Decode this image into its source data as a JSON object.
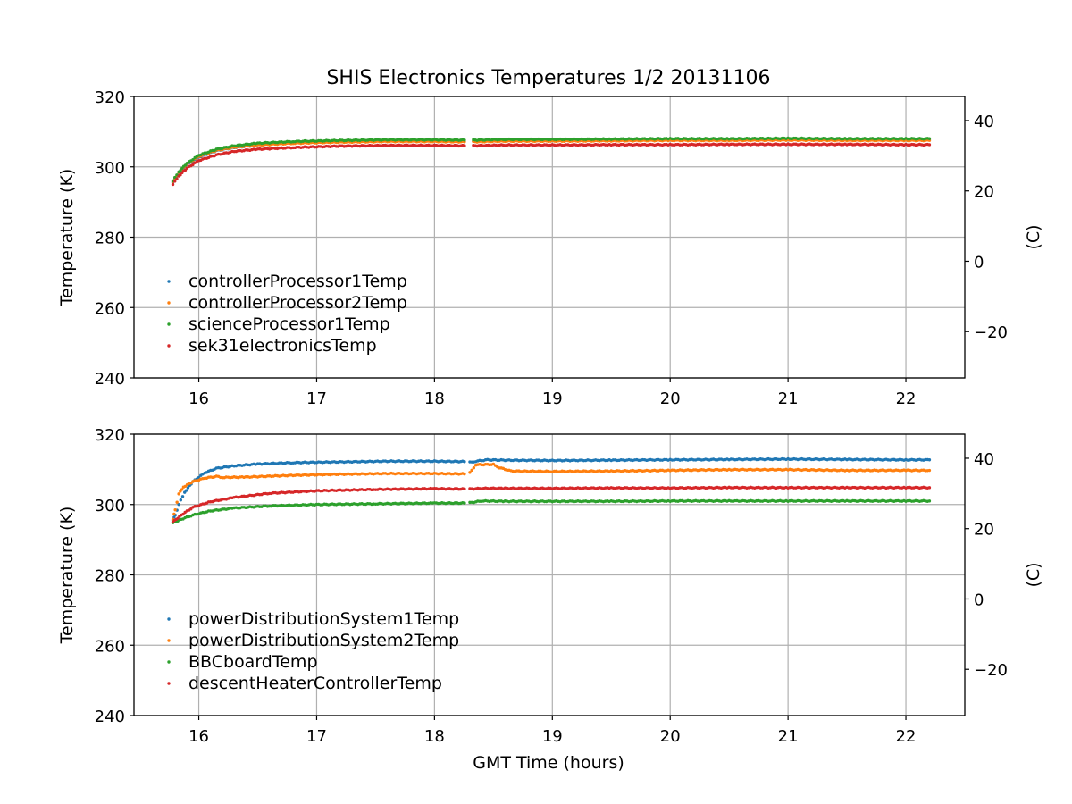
{
  "figure": {
    "title": "SHIS Electronics Temperatures 1/2 20131106",
    "xlabel": "GMT Time (hours)"
  },
  "chart_data": [
    {
      "type": "scatter",
      "ylabel": "Temperature (K)",
      "ylabel_right": "(C)",
      "xlabel": "",
      "xlim": [
        15.45,
        22.5
      ],
      "ylim": [
        240,
        320
      ],
      "ylim_right": [
        -33.15,
        46.85
      ],
      "xticks": [
        16,
        17,
        18,
        19,
        20,
        21,
        22
      ],
      "yticks": [
        240,
        260,
        280,
        300,
        320
      ],
      "yticks_right": [
        -20,
        0,
        20,
        40
      ],
      "grid": true,
      "legend_location": "lower-left",
      "gap": [
        18.27,
        18.33
      ],
      "series": [
        {
          "name": "controllerProcessor1Temp",
          "color": "#1f77b4",
          "points": [
            [
              15.78,
              295.6
            ],
            [
              15.83,
              298.2
            ],
            [
              15.9,
              300.6
            ],
            [
              16.0,
              302.8
            ],
            [
              16.15,
              304.6
            ],
            [
              16.3,
              305.5
            ],
            [
              16.5,
              306.2
            ],
            [
              16.8,
              306.8
            ],
            [
              17.2,
              307.1
            ],
            [
              17.6,
              307.3
            ],
            [
              18.0,
              307.3
            ],
            [
              18.27,
              307.2
            ],
            [
              18.33,
              307.2
            ],
            [
              18.6,
              307.4
            ],
            [
              19.0,
              307.4
            ],
            [
              19.5,
              307.5
            ],
            [
              20.0,
              307.6
            ],
            [
              20.5,
              307.6
            ],
            [
              21.0,
              307.7
            ],
            [
              21.5,
              307.6
            ],
            [
              22.0,
              307.6
            ],
            [
              22.2,
              307.6
            ]
          ]
        },
        {
          "name": "controllerProcessor2Temp",
          "color": "#ff7f0e",
          "points": [
            [
              15.78,
              295.8
            ],
            [
              15.83,
              298.4
            ],
            [
              15.9,
              300.8
            ],
            [
              16.0,
              303.0
            ],
            [
              16.15,
              304.7
            ],
            [
              16.3,
              305.6
            ],
            [
              16.5,
              306.2
            ],
            [
              16.8,
              306.7
            ],
            [
              17.2,
              307.0
            ],
            [
              17.6,
              307.2
            ],
            [
              18.0,
              307.2
            ],
            [
              18.27,
              307.1
            ],
            [
              18.33,
              307.1
            ],
            [
              18.6,
              307.3
            ],
            [
              19.0,
              307.3
            ],
            [
              19.5,
              307.4
            ],
            [
              20.0,
              307.5
            ],
            [
              20.5,
              307.5
            ],
            [
              21.0,
              307.6
            ],
            [
              21.5,
              307.5
            ],
            [
              22.0,
              307.5
            ],
            [
              22.2,
              307.5
            ]
          ]
        },
        {
          "name": "scienceProcessor1Temp",
          "color": "#2ca02c",
          "points": [
            [
              15.78,
              296.0
            ],
            [
              15.83,
              298.6
            ],
            [
              15.9,
              301.0
            ],
            [
              16.0,
              303.3
            ],
            [
              16.15,
              305.0
            ],
            [
              16.3,
              306.0
            ],
            [
              16.5,
              306.7
            ],
            [
              16.8,
              307.2
            ],
            [
              17.2,
              307.5
            ],
            [
              17.6,
              307.7
            ],
            [
              18.0,
              307.7
            ],
            [
              18.27,
              307.6
            ],
            [
              18.33,
              307.6
            ],
            [
              18.6,
              307.8
            ],
            [
              19.0,
              307.8
            ],
            [
              19.5,
              307.9
            ],
            [
              20.0,
              308.0
            ],
            [
              20.5,
              308.0
            ],
            [
              21.0,
              308.1
            ],
            [
              21.5,
              308.0
            ],
            [
              22.0,
              308.0
            ],
            [
              22.2,
              308.0
            ]
          ]
        },
        {
          "name": "sek31electronicsTemp",
          "color": "#d62728",
          "points": [
            [
              15.78,
              295.0
            ],
            [
              15.83,
              297.4
            ],
            [
              15.9,
              299.6
            ],
            [
              16.0,
              301.8
            ],
            [
              16.15,
              303.4
            ],
            [
              16.3,
              304.4
            ],
            [
              16.5,
              305.0
            ],
            [
              16.8,
              305.5
            ],
            [
              17.2,
              305.9
            ],
            [
              17.6,
              306.1
            ],
            [
              18.0,
              306.1
            ],
            [
              18.27,
              306.0
            ],
            [
              18.33,
              306.0
            ],
            [
              18.6,
              306.2
            ],
            [
              19.0,
              306.2
            ],
            [
              19.5,
              306.3
            ],
            [
              20.0,
              306.3
            ],
            [
              20.5,
              306.4
            ],
            [
              21.0,
              306.4
            ],
            [
              21.5,
              306.4
            ],
            [
              22.0,
              306.3
            ],
            [
              22.2,
              306.3
            ]
          ]
        }
      ]
    },
    {
      "type": "scatter",
      "ylabel": "Temperature (K)",
      "ylabel_right": "(C)",
      "xlabel": "GMT Time (hours)",
      "xlim": [
        15.45,
        22.5
      ],
      "ylim": [
        240,
        320
      ],
      "ylim_right": [
        -33.15,
        46.85
      ],
      "xticks": [
        16,
        17,
        18,
        19,
        20,
        21,
        22
      ],
      "yticks": [
        240,
        260,
        280,
        300,
        320
      ],
      "yticks_right": [
        -20,
        0,
        20,
        40
      ],
      "grid": true,
      "legend_location": "lower-left",
      "gap": [
        18.27,
        18.3
      ],
      "series": [
        {
          "name": "powerDistributionSystem1Temp",
          "color": "#1f77b4",
          "points": [
            [
              15.78,
              295.5
            ],
            [
              15.8,
              297.0
            ],
            [
              15.83,
              300.0
            ],
            [
              15.88,
              303.5
            ],
            [
              15.95,
              306.5
            ],
            [
              16.05,
              309.0
            ],
            [
              16.15,
              310.3
            ],
            [
              16.3,
              311.0
            ],
            [
              16.5,
              311.5
            ],
            [
              16.8,
              311.9
            ],
            [
              17.2,
              312.1
            ],
            [
              17.6,
              312.3
            ],
            [
              18.0,
              312.3
            ],
            [
              18.27,
              312.2
            ],
            [
              18.3,
              312.0
            ],
            [
              18.35,
              312.3
            ],
            [
              18.45,
              312.7
            ],
            [
              18.6,
              312.6
            ],
            [
              19.0,
              312.5
            ],
            [
              19.5,
              312.6
            ],
            [
              20.0,
              312.7
            ],
            [
              20.5,
              312.8
            ],
            [
              21.0,
              312.9
            ],
            [
              21.5,
              312.8
            ],
            [
              22.0,
              312.7
            ],
            [
              22.2,
              312.7
            ]
          ]
        },
        {
          "name": "powerDistributionSystem2Temp",
          "color": "#ff7f0e",
          "points": [
            [
              15.78,
              295.8
            ],
            [
              15.8,
              298.5
            ],
            [
              15.83,
              303.0
            ],
            [
              15.87,
              305.0
            ],
            [
              15.95,
              306.5
            ],
            [
              16.05,
              307.5
            ],
            [
              16.15,
              308.0
            ],
            [
              16.2,
              307.7
            ],
            [
              16.4,
              307.8
            ],
            [
              16.8,
              308.3
            ],
            [
              17.2,
              308.6
            ],
            [
              17.6,
              308.8
            ],
            [
              18.0,
              308.8
            ],
            [
              18.27,
              308.7
            ],
            [
              18.3,
              309.0
            ],
            [
              18.35,
              311.3
            ],
            [
              18.5,
              311.4
            ],
            [
              18.55,
              310.5
            ],
            [
              18.65,
              309.5
            ],
            [
              19.0,
              309.4
            ],
            [
              19.5,
              309.5
            ],
            [
              20.0,
              309.7
            ],
            [
              20.5,
              309.9
            ],
            [
              21.0,
              309.9
            ],
            [
              21.5,
              309.7
            ],
            [
              22.0,
              309.7
            ],
            [
              22.2,
              309.7
            ]
          ]
        },
        {
          "name": "BBCboardTemp",
          "color": "#2ca02c",
          "points": [
            [
              15.78,
              294.8
            ],
            [
              15.85,
              295.8
            ],
            [
              15.95,
              297.0
            ],
            [
              16.1,
              298.2
            ],
            [
              16.3,
              299.0
            ],
            [
              16.6,
              299.6
            ],
            [
              17.0,
              300.0
            ],
            [
              17.5,
              300.2
            ],
            [
              18.0,
              300.4
            ],
            [
              18.27,
              300.4
            ],
            [
              18.3,
              300.5
            ],
            [
              18.4,
              301.0
            ],
            [
              18.6,
              300.9
            ],
            [
              19.0,
              300.9
            ],
            [
              19.5,
              300.9
            ],
            [
              20.0,
              301.0
            ],
            [
              20.5,
              301.0
            ],
            [
              21.0,
              301.0
            ],
            [
              21.5,
              301.0
            ],
            [
              22.0,
              301.0
            ],
            [
              22.2,
              301.0
            ]
          ]
        },
        {
          "name": "descentHeaterControllerTemp",
          "color": "#d62728",
          "points": [
            [
              15.78,
              295.0
            ],
            [
              15.85,
              297.0
            ],
            [
              15.95,
              299.2
            ],
            [
              16.1,
              300.8
            ],
            [
              16.3,
              302.0
            ],
            [
              16.6,
              303.2
            ],
            [
              17.0,
              303.9
            ],
            [
              17.5,
              304.3
            ],
            [
              18.0,
              304.5
            ],
            [
              18.27,
              304.4
            ],
            [
              18.3,
              304.4
            ],
            [
              18.4,
              304.6
            ],
            [
              18.6,
              304.6
            ],
            [
              19.0,
              304.6
            ],
            [
              19.5,
              304.7
            ],
            [
              20.0,
              304.7
            ],
            [
              20.5,
              304.8
            ],
            [
              21.0,
              304.8
            ],
            [
              21.5,
              304.8
            ],
            [
              22.0,
              304.8
            ],
            [
              22.2,
              304.8
            ]
          ]
        }
      ]
    }
  ]
}
